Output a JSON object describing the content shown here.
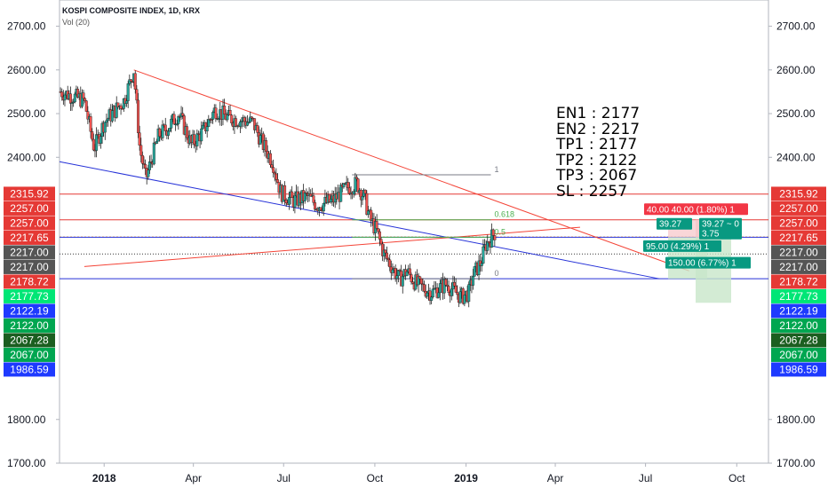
{
  "header": {
    "title": "KOSPI COMPOSITE INDEX, 1D, KRX",
    "indicator": "Vol (20)"
  },
  "annotation_lines": [
    "EN1 : 2177",
    "EN2 : 2217",
    "TP1 : 2177",
    "TP2 : 2122",
    "TP3 : 2067",
    "SL : 2257"
  ],
  "chart_data": {
    "type": "candlestick",
    "ylim": [
      1700,
      2760
    ],
    "y_ticks": [
      "1700.00",
      "1800.00",
      "2400.00",
      "2500.00",
      "2600.00",
      "2700.00"
    ],
    "x_ticks": [
      "2018",
      "Apr",
      "Jul",
      "Oct",
      "2019",
      "Apr",
      "Jul",
      "Oct"
    ],
    "x_tick_bold": [
      true,
      false,
      false,
      false,
      true,
      false,
      false,
      false
    ],
    "x_tick_days": [
      0,
      90,
      181,
      273,
      365,
      455,
      546,
      638
    ],
    "x_range_days": [
      -45,
      670
    ],
    "price_path": [
      [
        -44,
        2550
      ],
      [
        -20,
        2530
      ],
      [
        -10,
        2420
      ],
      [
        0,
        2480
      ],
      [
        20,
        2530
      ],
      [
        30,
        2600
      ],
      [
        36,
        2420
      ],
      [
        42,
        2350
      ],
      [
        55,
        2450
      ],
      [
        65,
        2470
      ],
      [
        75,
        2500
      ],
      [
        88,
        2430
      ],
      [
        100,
        2460
      ],
      [
        112,
        2510
      ],
      [
        125,
        2490
      ],
      [
        150,
        2480
      ],
      [
        160,
        2430
      ],
      [
        170,
        2390
      ],
      [
        178,
        2320
      ],
      [
        190,
        2300
      ],
      [
        205,
        2310
      ],
      [
        215,
        2290
      ],
      [
        230,
        2300
      ],
      [
        245,
        2330
      ],
      [
        255,
        2340
      ],
      [
        262,
        2310
      ],
      [
        268,
        2260
      ],
      [
        275,
        2230
      ],
      [
        282,
        2180
      ],
      [
        290,
        2150
      ],
      [
        298,
        2120
      ],
      [
        305,
        2140
      ],
      [
        315,
        2110
      ],
      [
        330,
        2090
      ],
      [
        345,
        2110
      ],
      [
        360,
        2080
      ],
      [
        368,
        2090
      ],
      [
        372,
        2130
      ],
      [
        380,
        2160
      ],
      [
        385,
        2200
      ],
      [
        395,
        2230
      ]
    ],
    "horizontal_levels": [
      {
        "price": 2315.92,
        "label": "2315.92",
        "side": "both",
        "color": "#e53935",
        "line": "solid"
      },
      {
        "price": 2257.0,
        "label": "2257.00",
        "side": "both",
        "color": "#e53935",
        "line": "solid"
      },
      {
        "price": 2217.65,
        "label": "2217.65",
        "side": "both",
        "color": "#ff1744",
        "line": "dotted"
      },
      {
        "price": 2217.0,
        "label": "2217.00",
        "side": "both",
        "color": "#555555",
        "line": "solid-blue"
      },
      {
        "price": 2178.72,
        "label": "2178.72",
        "side": "both",
        "color": "#ff1744",
        "line": "dotted-dark"
      },
      {
        "price": 2177.73,
        "label": "2177.73",
        "side": "both",
        "color": "#00e676",
        "line": "none"
      },
      {
        "price": 2122.19,
        "label": "2122.19",
        "side": "both",
        "color": "#1e3aff",
        "line": "none"
      },
      {
        "price": 2122.0,
        "label": "2122.00",
        "side": "both",
        "color": "#00a650",
        "line": "solid-blue"
      },
      {
        "price": 2067.28,
        "label": "2067.28",
        "side": "both",
        "color": "#1b5e20",
        "line": "none"
      },
      {
        "price": 2067.0,
        "label": "2067.00",
        "side": "both",
        "color": "#00a650",
        "line": "none"
      },
      {
        "price": 1986.59,
        "label": "1986.59",
        "side": "both",
        "color": "#1e3aff",
        "line": "none"
      }
    ],
    "left_stack_labels": [
      "2315.92",
      "2257.00",
      "2257.00",
      "2217.65",
      "2217.00",
      "2217.00",
      "2178.72",
      "2177.73",
      "2122.19",
      "2122.00",
      "2067.28",
      "2067.00",
      "1986.59"
    ],
    "left_stack_colors": [
      "#e53935",
      "#e53935",
      "#e53935",
      "#e53935",
      "#555555",
      "#555555",
      "#e53935",
      "#00e676",
      "#1e3aff",
      "#00a650",
      "#1b5e20",
      "#00a650",
      "#1e3aff"
    ],
    "fib_levels": [
      {
        "label": "1",
        "price": 2360
      },
      {
        "label": "0.618",
        "price": 2257
      },
      {
        "label": "0.5",
        "price": 2217
      },
      {
        "label": "0",
        "price": 2122
      }
    ],
    "position_labels": [
      {
        "text": "40.00 40.00 (1.80%) 1",
        "color": "#f23645"
      },
      {
        "text": "39.27",
        "color": "#089981"
      },
      {
        "text": "39.27 ~ 0",
        "color": "#089981"
      },
      {
        "text": "3.75",
        "color": "#089981"
      },
      {
        "text": "95.00 (4.29%) 1",
        "color": "#089981"
      },
      {
        "text": "150.00 (6.77%) 1",
        "color": "#089981"
      }
    ],
    "trendlines": [
      {
        "from": [
          30,
          2600
        ],
        "to": [
          590,
          2140
        ],
        "color": "#f44336"
      },
      {
        "from": [
          -45,
          2390
        ],
        "to": [
          560,
          2122
        ],
        "color": "#2632d8"
      },
      {
        "from": [
          -20,
          2150
        ],
        "to": [
          480,
          2240
        ],
        "color": "#f44336"
      }
    ]
  }
}
